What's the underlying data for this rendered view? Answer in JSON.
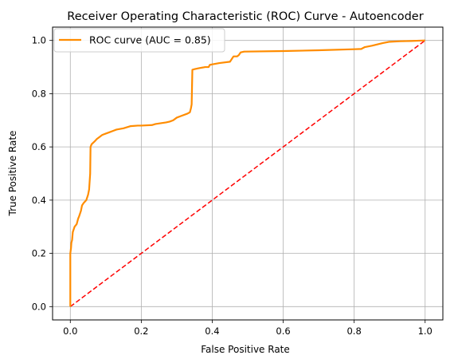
{
  "chart_data": {
    "type": "line",
    "title": "Receiver Operating Characteristic (ROC) Curve - Autoencoder",
    "xlabel": "False Positive Rate",
    "ylabel": "True Positive Rate",
    "xlim": [
      -0.05,
      1.05
    ],
    "ylim": [
      -0.05,
      1.05
    ],
    "xticks": [
      0.0,
      0.2,
      0.4,
      0.6,
      0.8,
      1.0
    ],
    "yticks": [
      0.0,
      0.2,
      0.4,
      0.6,
      0.8,
      1.0
    ],
    "xtick_labels": [
      "0.0",
      "0.2",
      "0.4",
      "0.6",
      "0.8",
      "1.0"
    ],
    "ytick_labels": [
      "0.0",
      "0.2",
      "0.4",
      "0.6",
      "0.8",
      "1.0"
    ],
    "grid": true,
    "legend_position": "upper-left",
    "series": [
      {
        "name": "ROC curve (AUC = 0.85)",
        "color": "#ff8c00",
        "style": "solid",
        "x": [
          0.0,
          0.0,
          0.002,
          0.003,
          0.005,
          0.007,
          0.012,
          0.018,
          0.022,
          0.025,
          0.03,
          0.033,
          0.038,
          0.045,
          0.05,
          0.053,
          0.056,
          0.057,
          0.06,
          0.068,
          0.075,
          0.08,
          0.09,
          0.1,
          0.11,
          0.12,
          0.13,
          0.15,
          0.17,
          0.19,
          0.2,
          0.23,
          0.24,
          0.27,
          0.28,
          0.29,
          0.3,
          0.31,
          0.33,
          0.337,
          0.34,
          0.342,
          0.344,
          0.35,
          0.36,
          0.38,
          0.39,
          0.393,
          0.4,
          0.42,
          0.45,
          0.455,
          0.46,
          0.47,
          0.475,
          0.48,
          0.49,
          0.6,
          0.7,
          0.8,
          0.82,
          0.83,
          0.85,
          0.88,
          0.9,
          0.93,
          0.96,
          1.0
        ],
        "y": [
          0.0,
          0.2,
          0.22,
          0.24,
          0.25,
          0.28,
          0.3,
          0.31,
          0.33,
          0.34,
          0.36,
          0.38,
          0.39,
          0.4,
          0.42,
          0.44,
          0.5,
          0.6,
          0.61,
          0.62,
          0.63,
          0.635,
          0.645,
          0.65,
          0.655,
          0.66,
          0.665,
          0.67,
          0.678,
          0.68,
          0.68,
          0.682,
          0.686,
          0.692,
          0.695,
          0.7,
          0.71,
          0.715,
          0.725,
          0.73,
          0.745,
          0.76,
          0.89,
          0.892,
          0.895,
          0.9,
          0.9,
          0.908,
          0.91,
          0.915,
          0.92,
          0.93,
          0.94,
          0.94,
          0.945,
          0.955,
          0.958,
          0.96,
          0.963,
          0.967,
          0.968,
          0.975,
          0.98,
          0.99,
          0.995,
          0.997,
          0.998,
          1.0
        ]
      },
      {
        "name": "",
        "color": "#ff0000",
        "style": "dashed",
        "x": [
          0.0,
          1.0
        ],
        "y": [
          0.0,
          1.0
        ]
      }
    ]
  }
}
